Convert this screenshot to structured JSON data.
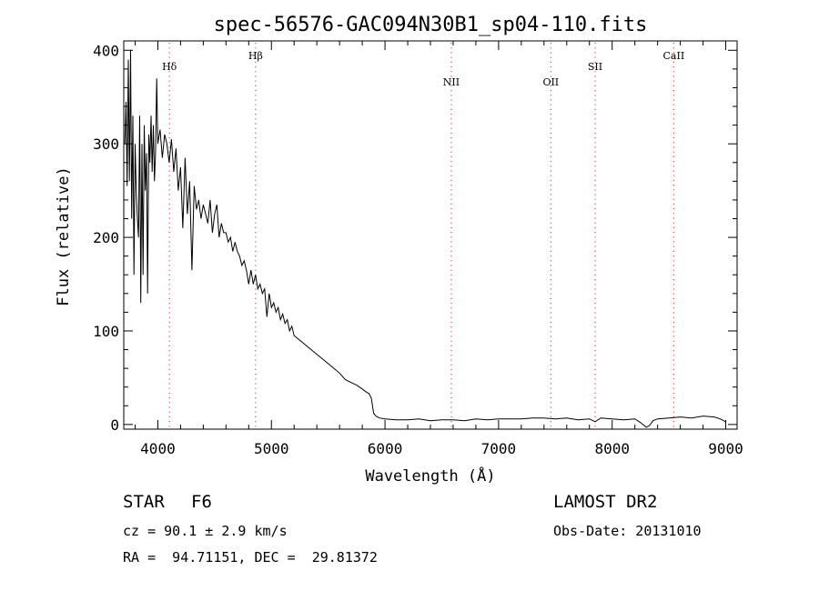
{
  "chart_data": {
    "type": "line",
    "title": "spec-56576-GAC094N30B1_sp04-110.fits",
    "xlabel": "Wavelength (Å)",
    "ylabel": "Flux (relative)",
    "xlim": [
      3700,
      9100
    ],
    "ylim": [
      -5,
      410
    ],
    "x_ticks": [
      4000,
      5000,
      6000,
      7000,
      8000,
      9000
    ],
    "y_ticks": [
      0,
      100,
      200,
      300,
      400
    ],
    "grid": false,
    "line_color": "#000000",
    "marker_line_color": "#d05050",
    "series": [
      {
        "x": [
          3710,
          3720,
          3730,
          3740,
          3750,
          3760,
          3770,
          3780,
          3790,
          3800,
          3810,
          3820,
          3830,
          3840,
          3850,
          3860,
          3870,
          3880,
          3890,
          3900,
          3910,
          3920,
          3930,
          3940,
          3950,
          3960,
          3970,
          3980,
          3990,
          4000,
          4020,
          4040,
          4060,
          4080,
          4100,
          4120,
          4140,
          4160,
          4180,
          4200,
          4220,
          4240,
          4260,
          4280,
          4300,
          4320,
          4340,
          4360,
          4380,
          4400,
          4420,
          4440,
          4460,
          4480,
          4500,
          4520,
          4540,
          4560,
          4580,
          4600,
          4620,
          4640,
          4660,
          4680,
          4700,
          4720,
          4740,
          4760,
          4780,
          4800,
          4820,
          4840,
          4860,
          4880,
          4900,
          4920,
          4940,
          4960,
          4980,
          5000,
          5020,
          5040,
          5060,
          5080,
          5100,
          5120,
          5140,
          5160,
          5180,
          5200,
          5250,
          5300,
          5350,
          5400,
          5450,
          5500,
          5550,
          5600,
          5650,
          5700,
          5750,
          5800,
          5830,
          5860,
          5880,
          5900,
          5920,
          5950,
          6000,
          6100,
          6200,
          6300,
          6400,
          6500,
          6600,
          6700,
          6800,
          6900,
          7000,
          7100,
          7200,
          7300,
          7400,
          7500,
          7600,
          7700,
          7800,
          7850,
          7900,
          8000,
          8100,
          8200,
          8250,
          8300,
          8330,
          8360,
          8400,
          8500,
          8600,
          8700,
          8800,
          8900,
          8950,
          9000
        ],
        "y": [
          300,
          345,
          255,
          390,
          260,
          400,
          220,
          330,
          160,
          300,
          250,
          220,
          200,
          330,
          130,
          300,
          160,
          320,
          250,
          290,
          140,
          310,
          280,
          330,
          270,
          320,
          260,
          290,
          370,
          300,
          315,
          285,
          310,
          300,
          280,
          305,
          270,
          295,
          250,
          275,
          210,
          285,
          225,
          260,
          165,
          255,
          230,
          240,
          220,
          235,
          225,
          215,
          240,
          205,
          225,
          235,
          200,
          215,
          205,
          205,
          195,
          200,
          185,
          195,
          185,
          180,
          170,
          175,
          165,
          150,
          165,
          150,
          160,
          145,
          150,
          140,
          145,
          115,
          140,
          125,
          130,
          120,
          125,
          112,
          118,
          108,
          112,
          100,
          105,
          95,
          90,
          85,
          80,
          75,
          70,
          65,
          60,
          55,
          48,
          45,
          42,
          38,
          35,
          33,
          28,
          12,
          9,
          7,
          6,
          5,
          5,
          6,
          4,
          5,
          5,
          4,
          6,
          5,
          6,
          6,
          6,
          7,
          7,
          6,
          7,
          5,
          6,
          3,
          7,
          6,
          5,
          6,
          2,
          -3,
          -1,
          4,
          6,
          7,
          8,
          7,
          9,
          8,
          6,
          3
        ]
      }
    ],
    "lines": [
      {
        "label": "Hδ",
        "x": 4102
      },
      {
        "label": "Hβ",
        "x": 4861
      },
      {
        "label": "NII",
        "x": 6584
      },
      {
        "label": "OII",
        "x": 7460
      },
      {
        "label": "SII",
        "x": 7850
      },
      {
        "label": "CaII",
        "x": 8542
      }
    ]
  },
  "info": {
    "object_class": "STAR",
    "subclass": "F6",
    "survey": "LAMOST DR2",
    "cz": "cz = 90.1 ± 2.9 km/s",
    "obs_date": "Obs-Date: 20131010",
    "radec": "RA =  94.71151, DEC =  29.81372"
  }
}
